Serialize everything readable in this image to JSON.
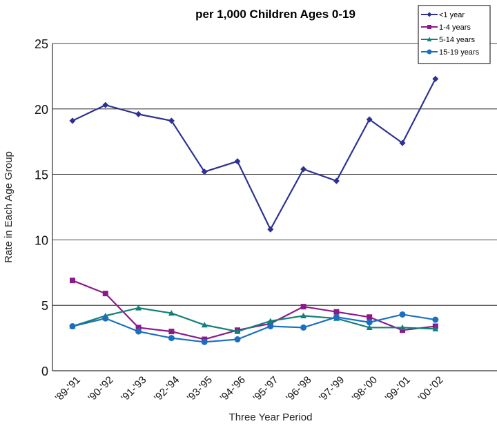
{
  "chart_data": {
    "type": "line",
    "title": "per 1,000 Children Ages 0-19",
    "xlabel": "Three Year Period",
    "ylabel": "Rate in Each Age Group",
    "categories": [
      "'89-'91",
      "'90-'92",
      "'91-'93",
      "'92-'94",
      "'93-'95",
      "'94-'96",
      "'95-'97",
      "'96-'98",
      "'97-'99",
      "'98-'00",
      "'99-'01",
      "'00-'02"
    ],
    "ylim": [
      0,
      25
    ],
    "yticks": [
      "0",
      "5",
      "10",
      "15",
      "20",
      "25"
    ],
    "grid": "horizontal",
    "legend_position": "top-right",
    "series": [
      {
        "name": "<1 year",
        "color": "#2E3192",
        "marker": "diamond",
        "values": [
          19.1,
          20.3,
          19.6,
          19.1,
          15.2,
          16.0,
          10.8,
          15.4,
          14.5,
          19.2,
          17.4,
          22.3
        ]
      },
      {
        "name": "1-4 years",
        "color": "#8B1A89",
        "marker": "square",
        "values": [
          6.9,
          5.9,
          3.3,
          3.0,
          2.4,
          3.1,
          3.6,
          4.9,
          4.5,
          4.1,
          3.1,
          3.4
        ]
      },
      {
        "name": "5-14 years",
        "color": "#138078",
        "marker": "triangle",
        "values": [
          3.4,
          4.2,
          4.8,
          4.4,
          3.5,
          3.0,
          3.8,
          4.2,
          4.0,
          3.3,
          3.3,
          3.2
        ]
      },
      {
        "name": "15-19 years",
        "color": "#1A6FC2",
        "marker": "circle",
        "values": [
          3.4,
          4.0,
          3.0,
          2.5,
          2.2,
          2.4,
          3.4,
          3.3,
          4.1,
          3.7,
          4.3,
          3.9
        ]
      }
    ]
  }
}
